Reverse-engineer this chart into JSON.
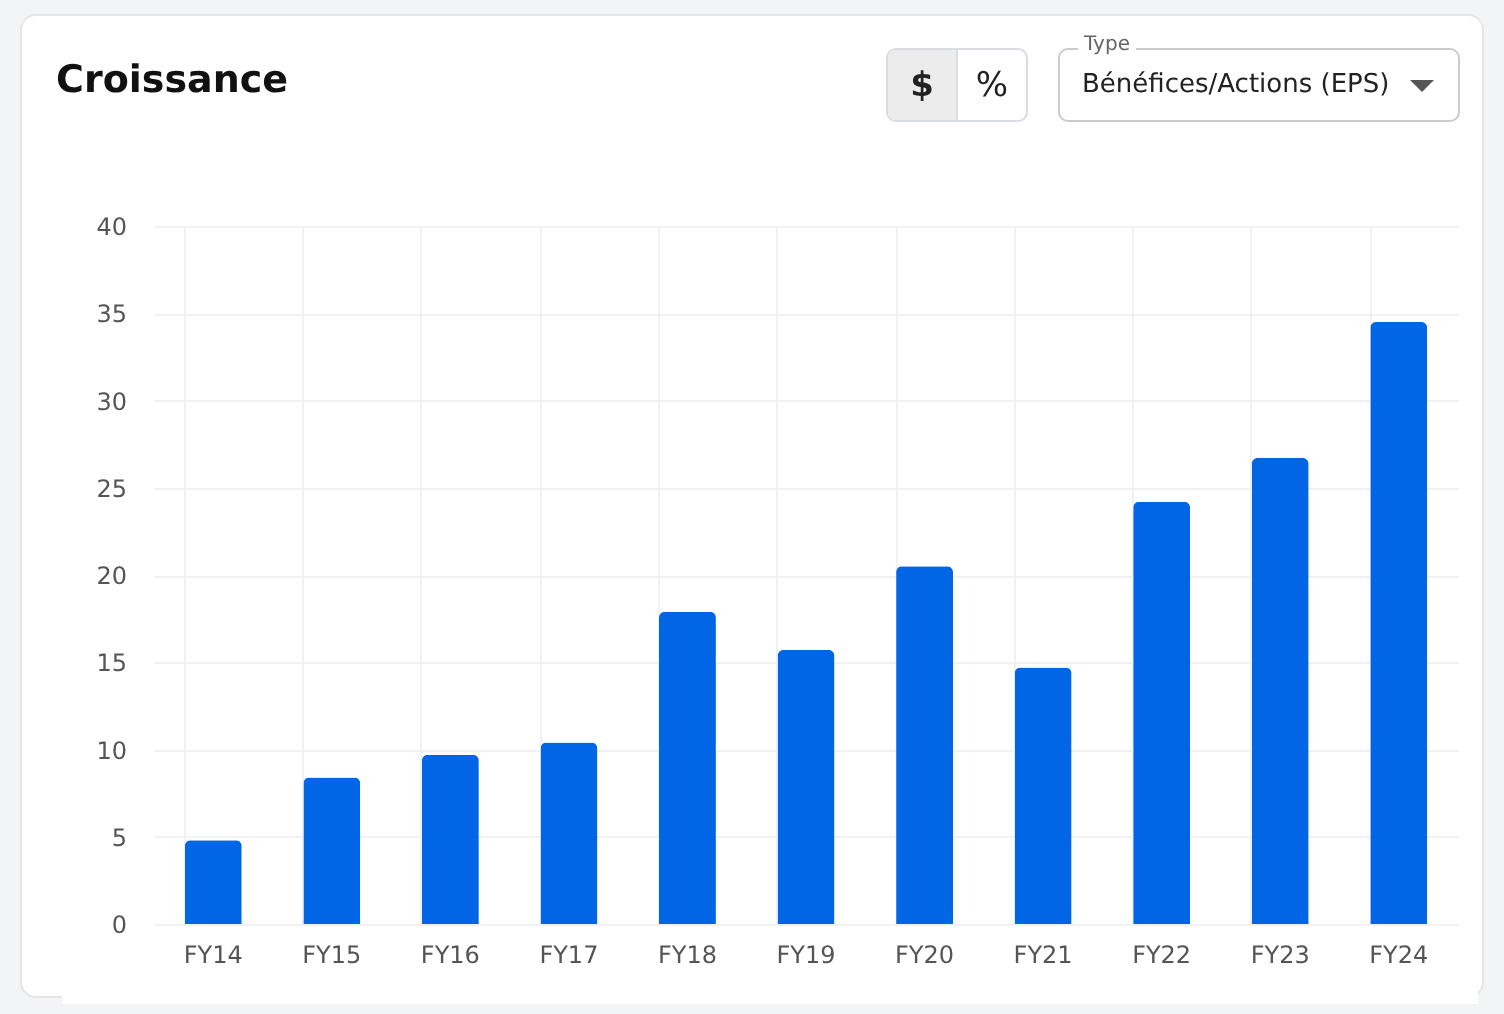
{
  "chart_data": {
    "type": "bar",
    "title": "Croissance",
    "categories": [
      "FY14",
      "FY15",
      "FY16",
      "FY17",
      "FY18",
      "FY19",
      "FY20",
      "FY21",
      "FY22",
      "FY23",
      "FY24"
    ],
    "values": [
      4.8,
      8.4,
      9.7,
      10.4,
      17.9,
      15.7,
      20.5,
      14.7,
      24.2,
      26.7,
      34.5
    ],
    "color": "#0066e6",
    "ylim": [
      0,
      40
    ],
    "yticks": [
      0,
      5,
      10,
      15,
      20,
      25,
      30,
      35,
      40
    ],
    "grid": true,
    "annotations": [
      "$",
      "%",
      "Type",
      "Bénéfices/Actions (EPS)"
    ]
  }
}
